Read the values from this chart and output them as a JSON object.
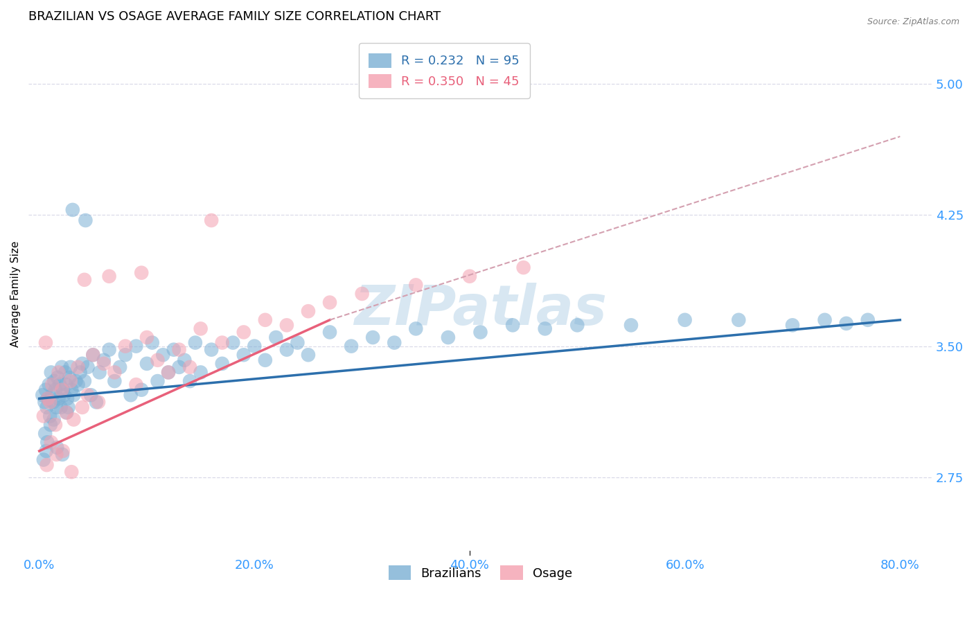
{
  "title": "BRAZILIAN VS OSAGE AVERAGE FAMILY SIZE CORRELATION CHART",
  "source": "Source: ZipAtlas.com",
  "ylabel": "Average Family Size",
  "xlabel_ticks": [
    "0.0%",
    "20.0%",
    "40.0%",
    "60.0%",
    "80.0%"
  ],
  "xlabel_vals": [
    0.0,
    20.0,
    40.0,
    60.0,
    80.0
  ],
  "yticks": [
    2.75,
    3.5,
    4.25,
    5.0
  ],
  "ylim": [
    2.3,
    5.3
  ],
  "xlim": [
    -1.0,
    83.0
  ],
  "brazilians_R": 0.232,
  "brazilians_N": 95,
  "osage_R": 0.35,
  "osage_N": 45,
  "blue_color": "#7BAFD4",
  "pink_color": "#F4A0B0",
  "blue_line_color": "#2C6FAC",
  "pink_line_color": "#E8607A",
  "axis_color": "#3399FF",
  "grid_color": "#DADAE8",
  "watermark_color": "#B8D4E8",
  "background_color": "#FFFFFF",
  "title_fontsize": 13,
  "label_fontsize": 11,
  "tick_fontsize": 13,
  "legend_fontsize": 13,
  "brazil_trendline_start_x": 0.0,
  "brazil_trendline_end_x": 80.0,
  "brazil_trendline_start_y": 3.2,
  "brazil_trendline_end_y": 3.65,
  "osage_solid_start_x": 0.0,
  "osage_solid_end_x": 27.0,
  "osage_solid_start_y": 2.9,
  "osage_solid_end_y": 3.65,
  "osage_dashed_start_x": 27.0,
  "osage_dashed_end_x": 80.0,
  "osage_dashed_start_y": 3.65,
  "osage_dashed_end_y": 4.7,
  "osage_dashed_color": "#D4A0B0",
  "scatter_size": 220,
  "scatter_alpha": 0.55,
  "brazil_points_x": [
    0.3,
    0.5,
    0.6,
    0.7,
    0.8,
    0.9,
    1.0,
    1.1,
    1.2,
    1.3,
    1.4,
    1.5,
    1.6,
    1.7,
    1.8,
    1.9,
    2.0,
    2.1,
    2.2,
    2.3,
    2.4,
    2.5,
    2.6,
    2.7,
    2.8,
    2.9,
    3.0,
    3.2,
    3.4,
    3.6,
    3.8,
    4.0,
    4.2,
    4.5,
    4.8,
    5.0,
    5.3,
    5.6,
    6.0,
    6.5,
    7.0,
    7.5,
    8.0,
    8.5,
    9.0,
    9.5,
    10.0,
    10.5,
    11.0,
    11.5,
    12.0,
    12.5,
    13.0,
    13.5,
    14.0,
    14.5,
    15.0,
    16.0,
    17.0,
    18.0,
    19.0,
    20.0,
    21.0,
    22.0,
    23.0,
    24.0,
    25.0,
    27.0,
    29.0,
    31.0,
    33.0,
    35.0,
    38.0,
    41.0,
    44.0,
    47.0,
    50.0,
    55.0,
    60.0,
    65.0,
    70.0,
    73.0,
    75.0,
    77.0,
    0.4,
    0.55,
    0.65,
    0.75,
    1.05,
    1.35,
    1.65,
    2.15,
    2.55,
    3.1,
    4.3
  ],
  "brazil_points_y": [
    3.22,
    3.18,
    3.25,
    3.15,
    3.2,
    3.28,
    3.1,
    3.35,
    3.22,
    3.18,
    3.3,
    3.25,
    3.15,
    3.32,
    3.2,
    3.28,
    3.15,
    3.38,
    3.25,
    3.22,
    3.35,
    3.28,
    3.2,
    3.15,
    3.32,
    3.38,
    3.25,
    3.22,
    3.3,
    3.28,
    3.35,
    3.4,
    3.3,
    3.38,
    3.22,
    3.45,
    3.18,
    3.35,
    3.42,
    3.48,
    3.3,
    3.38,
    3.45,
    3.22,
    3.5,
    3.25,
    3.4,
    3.52,
    3.3,
    3.45,
    3.35,
    3.48,
    3.38,
    3.42,
    3.3,
    3.52,
    3.35,
    3.48,
    3.4,
    3.52,
    3.45,
    3.5,
    3.42,
    3.55,
    3.48,
    3.52,
    3.45,
    3.58,
    3.5,
    3.55,
    3.52,
    3.6,
    3.55,
    3.58,
    3.62,
    3.6,
    3.62,
    3.62,
    3.65,
    3.65,
    3.62,
    3.65,
    3.63,
    3.65,
    2.85,
    3.0,
    2.9,
    2.95,
    3.05,
    3.08,
    2.92,
    2.88,
    3.12,
    4.28,
    4.22
  ],
  "osage_points_x": [
    0.4,
    0.6,
    0.8,
    1.0,
    1.2,
    1.5,
    1.8,
    2.1,
    2.5,
    2.9,
    3.2,
    3.6,
    4.0,
    4.5,
    5.0,
    5.5,
    6.0,
    7.0,
    8.0,
    9.0,
    10.0,
    11.0,
    12.0,
    13.0,
    14.0,
    15.0,
    17.0,
    19.0,
    21.0,
    23.0,
    25.0,
    27.0,
    30.0,
    35.0,
    40.0,
    45.0,
    0.7,
    1.1,
    1.6,
    2.2,
    3.0,
    4.2,
    6.5,
    9.5,
    16.0
  ],
  "osage_points_y": [
    3.1,
    3.52,
    3.2,
    3.18,
    3.28,
    3.05,
    3.35,
    3.25,
    3.12,
    3.3,
    3.08,
    3.38,
    3.15,
    3.22,
    3.45,
    3.18,
    3.4,
    3.35,
    3.5,
    3.28,
    3.55,
    3.42,
    3.35,
    3.48,
    3.38,
    3.6,
    3.52,
    3.58,
    3.65,
    3.62,
    3.7,
    3.75,
    3.8,
    3.85,
    3.9,
    3.95,
    2.82,
    2.95,
    2.88,
    2.9,
    2.78,
    3.88,
    3.9,
    3.92,
    4.22
  ]
}
